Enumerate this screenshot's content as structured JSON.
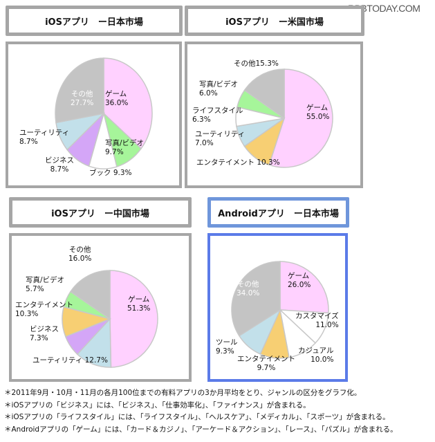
{
  "watermark": "RBBTODAY.COM",
  "colors": {
    "game": "#ffd1ff",
    "photo_video": "#a6f59a",
    "book": "#ffffff",
    "business": "#d4a6f7",
    "utility": "#c2e0ea",
    "other": "#c4c4c4",
    "lifestyle": "#ffffff",
    "entertainment": "#f7cf73",
    "customize": "#ffffff",
    "casual": "#ffffff",
    "tool": "#c2e0ea",
    "panel_border_gray": "#a6a6a6",
    "panel_border_blue": "#5b7be8",
    "title_border_blue": "#6f96db"
  },
  "panels": [
    {
      "title": "iOSアプリ　ー日本市場",
      "labels": [
        {
          "name": "ゲーム",
          "value": "36.0%"
        },
        {
          "name": "写真/ビデオ",
          "value": "9.7%"
        },
        {
          "name": "ブック 9.3%"
        },
        {
          "name": "ビジネス",
          "value": "8.7%"
        },
        {
          "name": "ユーティリティ",
          "value": "8.7%"
        },
        {
          "name": "その他",
          "value": "27.7%"
        }
      ]
    },
    {
      "title": "iOSアプリ　ー米国市場",
      "labels": [
        {
          "name": "ゲーム",
          "value": "55.0%"
        },
        {
          "name": "エンタテイメント 10.3%"
        },
        {
          "name": "ユーティリティ",
          "value": "7.0%"
        },
        {
          "name": "ライフスタイル",
          "value": "6.3%"
        },
        {
          "name": "写真/ビデオ",
          "value": "6.0%"
        },
        {
          "name": "その他15.3%"
        }
      ]
    },
    {
      "title": "iOSアプリ　ー中国市場",
      "labels": [
        {
          "name": "ゲーム",
          "value": "51.3%"
        },
        {
          "name": "ユーティリティ 12.7%"
        },
        {
          "name": "ビジネス",
          "value": "7.3%"
        },
        {
          "name": "エンタテイメント",
          "value": "10.3%"
        },
        {
          "name": "写真/ビデオ",
          "value": "5.7%"
        },
        {
          "name": "その他",
          "value": "16.0%"
        }
      ]
    },
    {
      "title": "Androidアプリ　ー日本市場",
      "labels": [
        {
          "name": "ゲーム",
          "value": "26.0%"
        },
        {
          "name": "カスタマイズ",
          "value": "11.0%"
        },
        {
          "name": "カジュアル",
          "value": "10.0%"
        },
        {
          "name": "エンタテイメント",
          "value": "9.7%"
        },
        {
          "name": "ツール",
          "value": "9.3%"
        },
        {
          "name": "その他",
          "value": "34.0%"
        }
      ]
    }
  ],
  "notes": [
    "＊2011年9月・10月・11月の各月100位までの有料アプリの3か月平均をとり、ジャンルの区分をグラフ化。",
    "＊iOSアプリの「ビジネス」には、「ビジネス」、「仕事効率化」、「ファイナンス」が含まれる。",
    "＊iOSアプリの「ライフスタイル」には、「ライフスタイル」、「ヘルスケア」、「メディカル」、「スポーツ」が含まれる。",
    "＊Androidアプリの「ゲーム」には、「カード＆カジノ」、「アーケード＆アクション」、「レース」、「パズル」が含まれる。"
  ],
  "chart_data": [
    {
      "type": "pie",
      "title": "iOSアプリ　ー日本市場",
      "categories": [
        "ゲーム",
        "写真/ビデオ",
        "ブック",
        "ビジネス",
        "ユーティリティ",
        "その他"
      ],
      "values": [
        36.0,
        9.7,
        9.3,
        8.7,
        8.7,
        27.7
      ],
      "colors": [
        "#ffd1ff",
        "#a6f59a",
        "#ffffff",
        "#d4a6f7",
        "#c2e0ea",
        "#c4c4c4"
      ],
      "unit": "%"
    },
    {
      "type": "pie",
      "title": "iOSアプリ　ー米国市場",
      "categories": [
        "ゲーム",
        "エンタテイメント",
        "ユーティリティ",
        "ライフスタイル",
        "写真/ビデオ",
        "その他"
      ],
      "values": [
        55.0,
        10.3,
        7.0,
        6.3,
        6.0,
        15.3
      ],
      "colors": [
        "#ffd1ff",
        "#f7cf73",
        "#c2e0ea",
        "#ffffff",
        "#a6f59a",
        "#c4c4c4"
      ],
      "unit": "%"
    },
    {
      "type": "pie",
      "title": "iOSアプリ　ー中国市場",
      "categories": [
        "ゲーム",
        "ユーティリティ",
        "ビジネス",
        "エンタテイメント",
        "写真/ビデオ",
        "その他"
      ],
      "values": [
        51.3,
        12.7,
        7.3,
        10.3,
        5.7,
        16.0
      ],
      "colors": [
        "#ffd1ff",
        "#c2e0ea",
        "#d4a6f7",
        "#f7cf73",
        "#a6f59a",
        "#c4c4c4"
      ],
      "unit": "%"
    },
    {
      "type": "pie",
      "title": "Androidアプリ　ー日本市場",
      "categories": [
        "ゲーム",
        "カスタマイズ",
        "カジュアル",
        "エンタテイメント",
        "ツール",
        "その他"
      ],
      "values": [
        26.0,
        11.0,
        10.0,
        9.7,
        9.3,
        34.0
      ],
      "colors": [
        "#ffd1ff",
        "#ffffff",
        "#ffffff",
        "#f7cf73",
        "#c2e0ea",
        "#c4c4c4"
      ],
      "unit": "%"
    }
  ]
}
